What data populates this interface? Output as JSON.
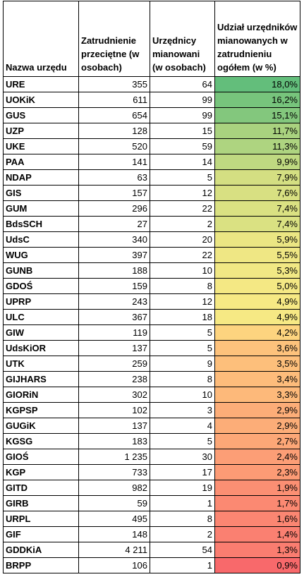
{
  "headers": {
    "name": "Nazwa urzędu",
    "employment": "Zatrudnienie przeciętne (w osobach)",
    "appointed": "Urzędnicy mianowani (w osobach)",
    "share": "Udział urzędników mianowanych w zatrudnieniu ogółem (w %)"
  },
  "rows": [
    {
      "name": "URE",
      "employment": "355",
      "appointed": "64",
      "share": "18,0%",
      "share_value": 18.0,
      "color": "#63be7b"
    },
    {
      "name": "UOKiK",
      "employment": "611",
      "appointed": "99",
      "share": "16,2%",
      "share_value": 16.2,
      "color": "#77c47c"
    },
    {
      "name": "GUS",
      "employment": "654",
      "appointed": "99",
      "share": "15,1%",
      "share_value": 15.1,
      "color": "#83c77d"
    },
    {
      "name": "UZP",
      "employment": "128",
      "appointed": "15",
      "share": "11,7%",
      "share_value": 11.7,
      "color": "#a9d27f"
    },
    {
      "name": "UKE",
      "employment": "520",
      "appointed": "59",
      "share": "11,3%",
      "share_value": 11.3,
      "color": "#aed480"
    },
    {
      "name": "PAA",
      "employment": "141",
      "appointed": "14",
      "share": "9,9%",
      "share_value": 9.9,
      "color": "#bfd981"
    },
    {
      "name": "NDAP",
      "employment": "63",
      "appointed": "5",
      "share": "7,9%",
      "share_value": 7.9,
      "color": "#d4df82"
    },
    {
      "name": "GIS",
      "employment": "157",
      "appointed": "12",
      "share": "7,6%",
      "share_value": 7.6,
      "color": "#d8e082"
    },
    {
      "name": "GUM",
      "employment": "296",
      "appointed": "22",
      "share": "7,4%",
      "share_value": 7.4,
      "color": "#dae182"
    },
    {
      "name": "BdsSCH",
      "employment": "27",
      "appointed": "2",
      "share": "7,4%",
      "share_value": 7.4,
      "color": "#dae182"
    },
    {
      "name": "UdsC",
      "employment": "340",
      "appointed": "20",
      "share": "5,9%",
      "share_value": 5.9,
      "color": "#ebe683"
    },
    {
      "name": "WUG",
      "employment": "397",
      "appointed": "22",
      "share": "5,5%",
      "share_value": 5.5,
      "color": "#efe784"
    },
    {
      "name": "GUNB",
      "employment": "188",
      "appointed": "10",
      "share": "5,3%",
      "share_value": 5.3,
      "color": "#f1e884"
    },
    {
      "name": "GDOŚ",
      "employment": "159",
      "appointed": "8",
      "share": "5,0%",
      "share_value": 5.0,
      "color": "#f4e884"
    },
    {
      "name": "UPRP",
      "employment": "243",
      "appointed": "12",
      "share": "4,9%",
      "share_value": 4.9,
      "color": "#f6e984"
    },
    {
      "name": "ULC",
      "employment": "367",
      "appointed": "18",
      "share": "4,9%",
      "share_value": 4.9,
      "color": "#f6e984"
    },
    {
      "name": "GIW",
      "employment": "119",
      "appointed": "5",
      "share": "4,2%",
      "share_value": 4.2,
      "color": "#fdd47f"
    },
    {
      "name": "UdsKiOR",
      "employment": "137",
      "appointed": "5",
      "share": "3,6%",
      "share_value": 3.6,
      "color": "#fdc27c"
    },
    {
      "name": "UTK",
      "employment": "259",
      "appointed": "9",
      "share": "3,5%",
      "share_value": 3.5,
      "color": "#fdbf7b"
    },
    {
      "name": "GIJHARS",
      "employment": "238",
      "appointed": "8",
      "share": "3,4%",
      "share_value": 3.4,
      "color": "#fdbc7b"
    },
    {
      "name": "GIORiN",
      "employment": "302",
      "appointed": "10",
      "share": "3,3%",
      "share_value": 3.3,
      "color": "#fdb97a"
    },
    {
      "name": "KGPSP",
      "employment": "102",
      "appointed": "3",
      "share": "2,9%",
      "share_value": 2.9,
      "color": "#fcad78"
    },
    {
      "name": "GUGiK",
      "employment": "137",
      "appointed": "4",
      "share": "2,9%",
      "share_value": 2.9,
      "color": "#fcad78"
    },
    {
      "name": "KGSG",
      "employment": "183",
      "appointed": "5",
      "share": "2,7%",
      "share_value": 2.7,
      "color": "#fca777"
    },
    {
      "name": "GIOŚ",
      "employment": "1 235",
      "appointed": "30",
      "share": "2,4%",
      "share_value": 2.4,
      "color": "#fc9e76"
    },
    {
      "name": "KGP",
      "employment": "733",
      "appointed": "17",
      "share": "2,3%",
      "share_value": 2.3,
      "color": "#fc9b75"
    },
    {
      "name": "GITD",
      "employment": "982",
      "appointed": "19",
      "share": "1,9%",
      "share_value": 1.9,
      "color": "#fb8f73"
    },
    {
      "name": "GIRB",
      "employment": "59",
      "appointed": "1",
      "share": "1,7%",
      "share_value": 1.7,
      "color": "#fb8972"
    },
    {
      "name": "URPL",
      "employment": "495",
      "appointed": "8",
      "share": "1,6%",
      "share_value": 1.6,
      "color": "#fb8672"
    },
    {
      "name": "GIF",
      "employment": "148",
      "appointed": "2",
      "share": "1,4%",
      "share_value": 1.4,
      "color": "#fa8071"
    },
    {
      "name": "GDDKiA",
      "employment": "4 211",
      "appointed": "54",
      "share": "1,3%",
      "share_value": 1.3,
      "color": "#fa7d70"
    },
    {
      "name": "BRPP",
      "employment": "106",
      "appointed": "1",
      "share": "0,9%",
      "share_value": 0.9,
      "color": "#f8696b"
    }
  ]
}
